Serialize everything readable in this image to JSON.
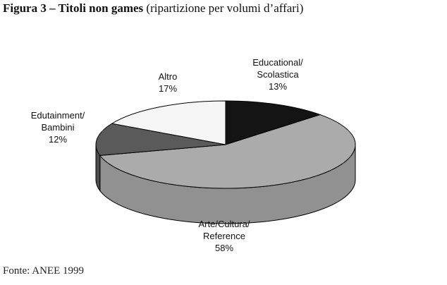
{
  "chart_data": {
    "type": "pie",
    "title": "Figura 3 – Titoli non games",
    "subtitle": "(ripartizione per volumi d’affari)",
    "source": "Fonte: ANEE 1999",
    "categories": [
      "Educational/\nScolastica",
      "Arte/Cultura/\nReference",
      "Edutainment/\nBambini",
      "Altro"
    ],
    "values": [
      13,
      58,
      12,
      17
    ],
    "value_labels": [
      "13%",
      "58%",
      "12%",
      "17%"
    ],
    "colors": [
      "#141414",
      "#ababab",
      "#5a5a5a",
      "#f5f5f5"
    ]
  }
}
